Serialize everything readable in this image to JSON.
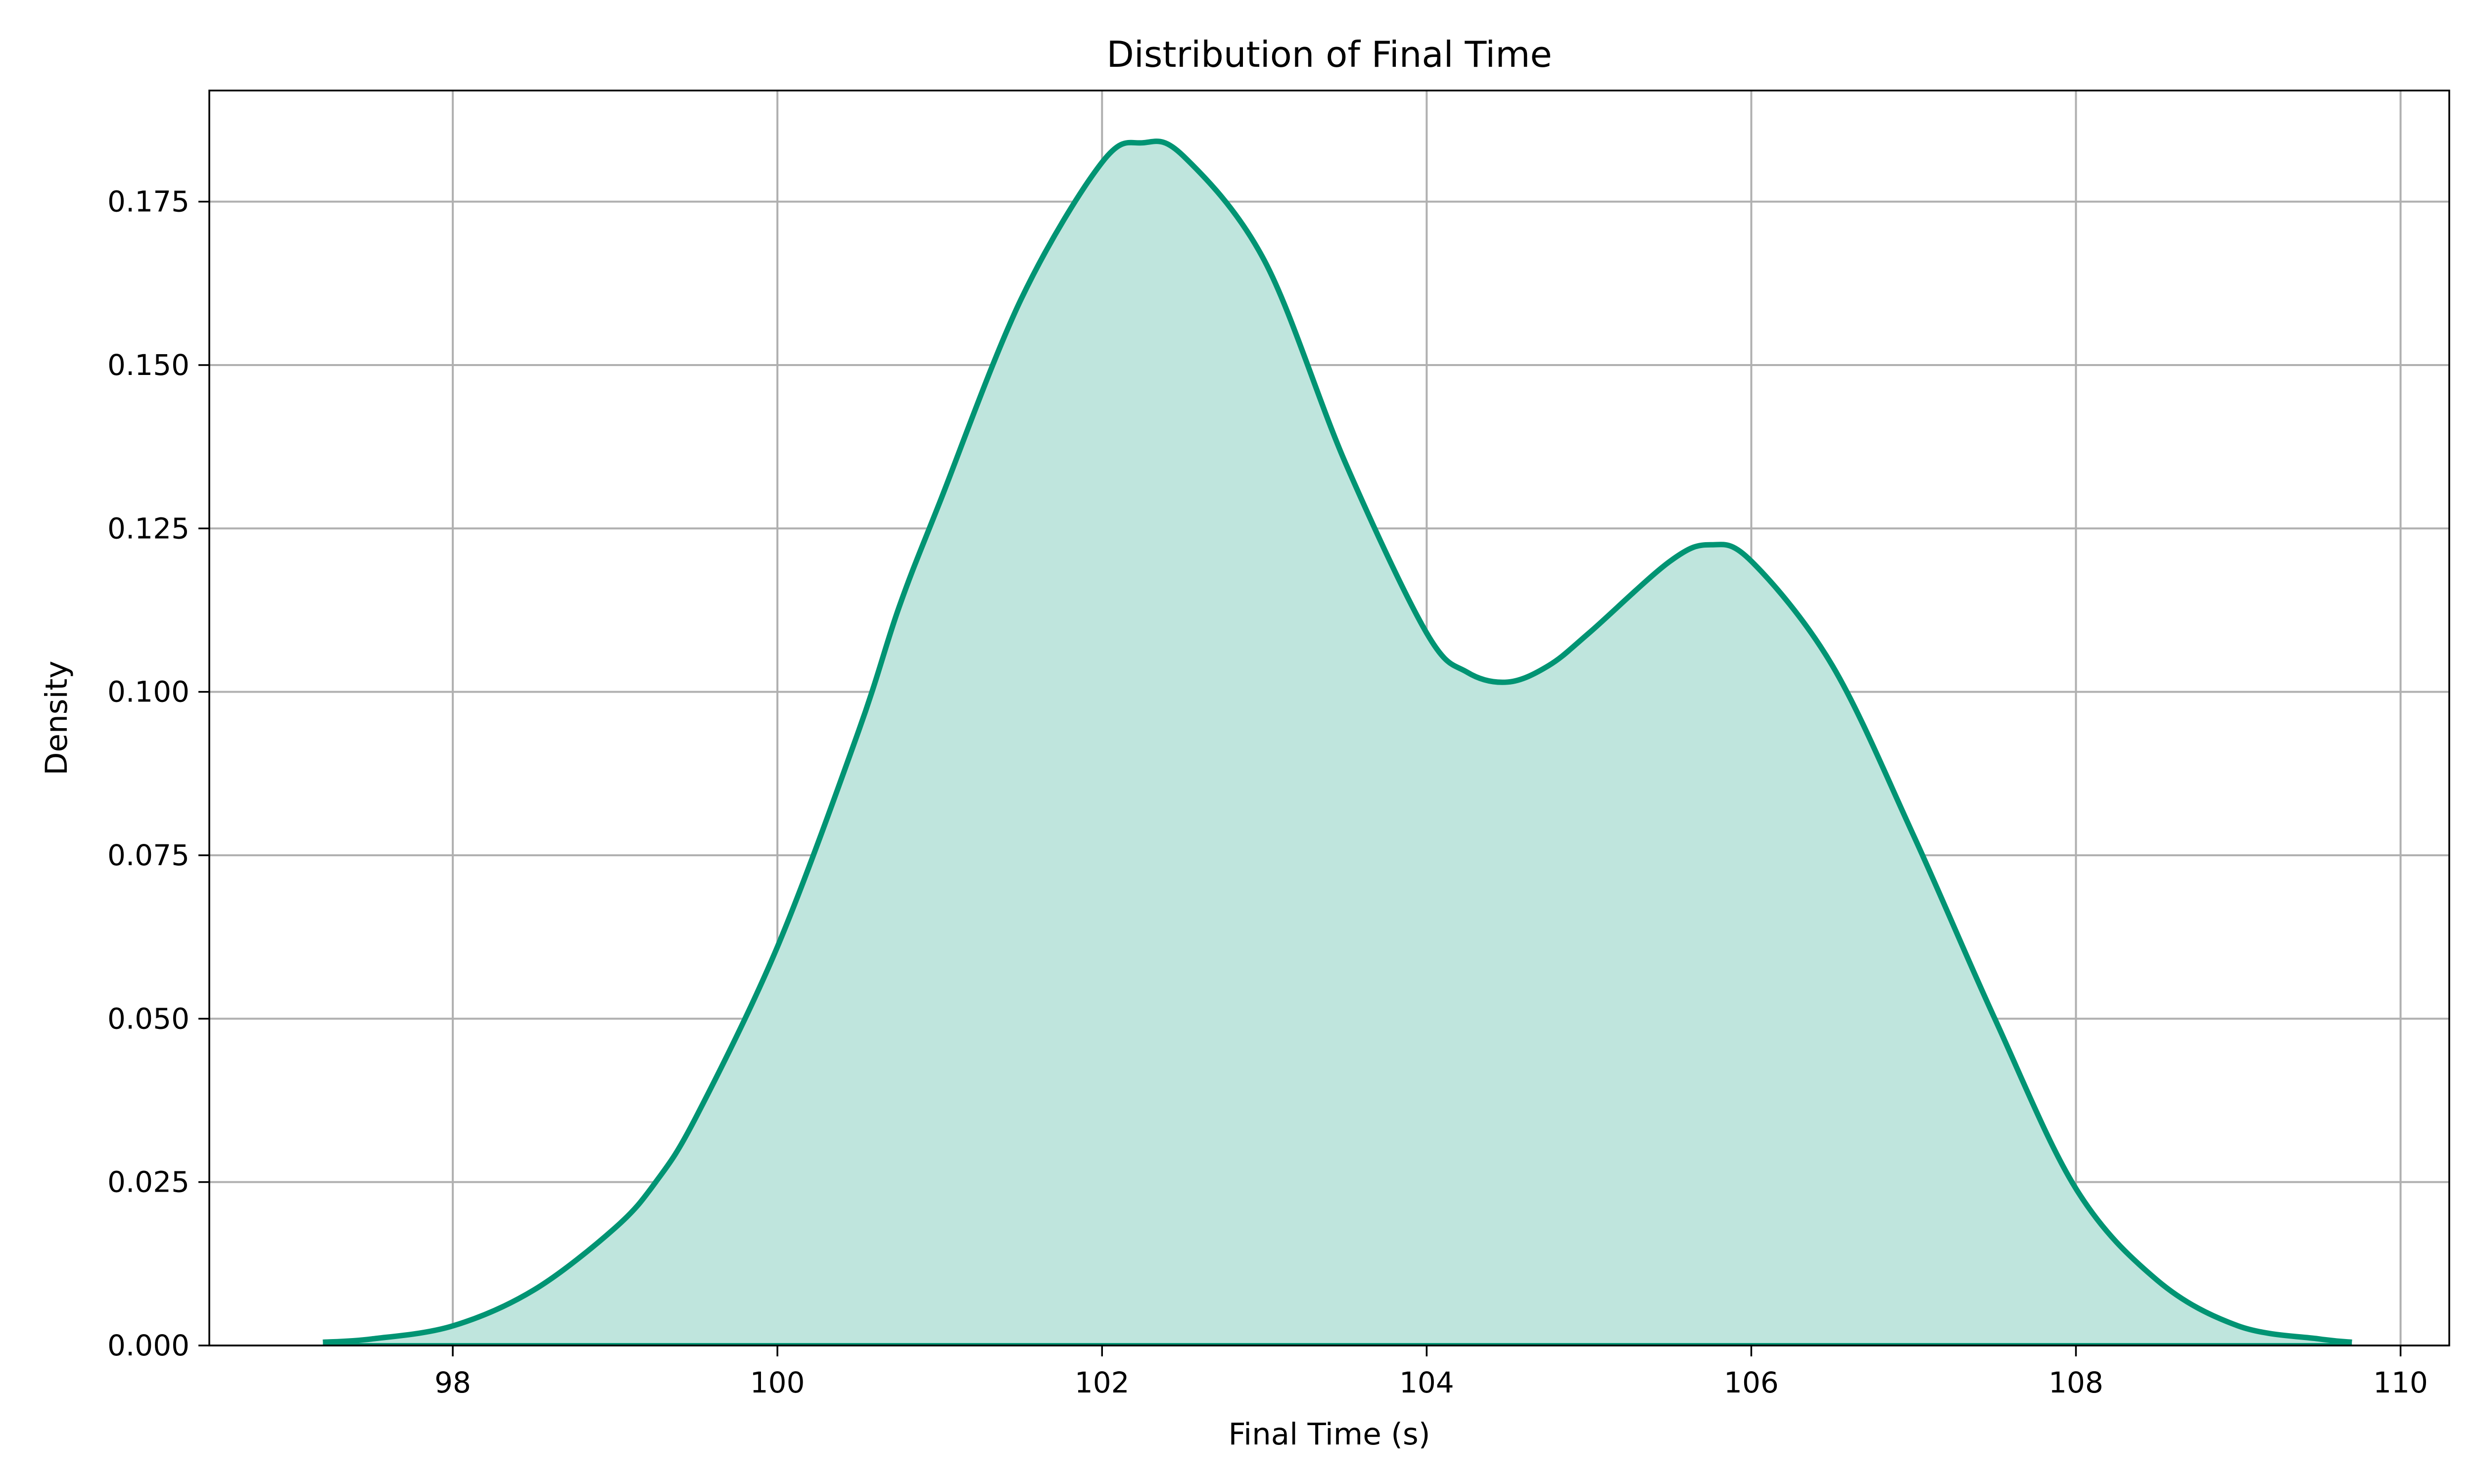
{
  "chart_data": {
    "type": "area",
    "title": "Distribution of Final Time",
    "xlabel": "Final Time (s)",
    "ylabel": "Density",
    "xlim": [
      96.5,
      110.3
    ],
    "ylim": [
      0.0,
      0.192
    ],
    "x_ticks": [
      98,
      100,
      102,
      104,
      106,
      108,
      110
    ],
    "x_tick_labels": [
      "98",
      "100",
      "102",
      "104",
      "106",
      "108",
      "110"
    ],
    "y_ticks": [
      0.0,
      0.025,
      0.05,
      0.075,
      0.1,
      0.125,
      0.15,
      0.175
    ],
    "y_tick_labels": [
      "0.000",
      "0.025",
      "0.050",
      "0.075",
      "0.100",
      "0.125",
      "0.150",
      "0.175"
    ],
    "grid": true,
    "series": [
      {
        "color": "#009473",
        "fill_color": "#bfe5dd",
        "x": [
          97.2,
          97.5,
          98.0,
          98.5,
          99.0,
          99.25,
          99.5,
          100.0,
          100.5,
          100.75,
          101.0,
          101.5,
          102.0,
          102.25,
          102.5,
          103.0,
          103.5,
          104.0,
          104.25,
          104.5,
          104.75,
          105.0,
          105.5,
          105.75,
          106.0,
          106.5,
          107.0,
          107.5,
          108.0,
          108.5,
          109.0,
          109.5,
          109.7
        ],
        "y": [
          0.0005,
          0.001,
          0.003,
          0.0085,
          0.018,
          0.025,
          0.035,
          0.061,
          0.094,
          0.113,
          0.129,
          0.16,
          0.181,
          0.184,
          0.182,
          0.166,
          0.135,
          0.109,
          0.103,
          0.1015,
          0.104,
          0.109,
          0.12,
          0.1225,
          0.12,
          0.104,
          0.078,
          0.05,
          0.024,
          0.01,
          0.003,
          0.001,
          0.0005
        ]
      }
    ]
  }
}
